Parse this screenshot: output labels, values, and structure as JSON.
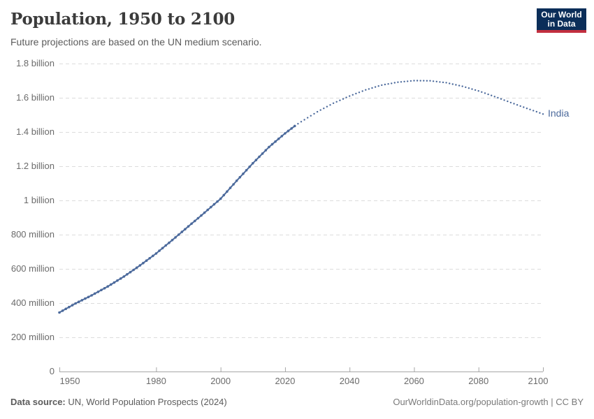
{
  "header": {
    "title": "Population, 1950 to 2100",
    "subtitle": "Future projections are based on the UN medium scenario.",
    "logo": {
      "line1": "Our World",
      "line2": "in Data",
      "bg": "#0b2e59",
      "accent": "#c22f3f"
    }
  },
  "footer": {
    "source_label": "Data source:",
    "source_text": " UN, World Population Prospects (2024)",
    "right_text": "OurWorldinData.org/population-growth | CC BY"
  },
  "chart_data": {
    "type": "line",
    "title": "Population, 1950 to 2100",
    "subtitle": "Future projections are based on the UN medium scenario.",
    "entity": "India",
    "color": "#4C6A9C",
    "grid": "dashed-horizontal",
    "legend": "label-at-line-end",
    "x_range": [
      1950,
      2100
    ],
    "y_range_millions": [
      0,
      1800
    ],
    "x_ticks": [
      {
        "year": 1950,
        "label": "1950"
      },
      {
        "year": 1980,
        "label": "1980"
      },
      {
        "year": 2000,
        "label": "2000"
      },
      {
        "year": 2020,
        "label": "2020"
      },
      {
        "year": 2040,
        "label": "2040"
      },
      {
        "year": 2060,
        "label": "2060"
      },
      {
        "year": 2080,
        "label": "2080"
      },
      {
        "year": 2100,
        "label": "2100"
      }
    ],
    "y_ticks": [
      {
        "millions": 0,
        "label": "0"
      },
      {
        "millions": 200,
        "label": "200 million"
      },
      {
        "millions": 400,
        "label": "400 million"
      },
      {
        "millions": 600,
        "label": "600 million"
      },
      {
        "millions": 800,
        "label": "800 million"
      },
      {
        "millions": 1000,
        "label": "1 billion"
      },
      {
        "millions": 1200,
        "label": "1.2 billion"
      },
      {
        "millions": 1400,
        "label": "1.4 billion"
      },
      {
        "millions": 1600,
        "label": "1.6 billion"
      },
      {
        "millions": 1800,
        "label": "1.8 billion"
      }
    ],
    "series": [
      {
        "name": "India",
        "historical": {
          "style": "dense-dots",
          "years": [
            1950,
            1955,
            1960,
            1965,
            1970,
            1975,
            1980,
            1985,
            1990,
            1995,
            2000,
            2005,
            2010,
            2015,
            2020,
            2023
          ],
          "millions": [
            345,
            398,
            445,
            497,
            555,
            620,
            690,
            768,
            848,
            928,
            1010,
            1115,
            1217,
            1312,
            1392,
            1435
          ]
        },
        "projection": {
          "style": "dotted",
          "years": [
            2024,
            2025,
            2030,
            2035,
            2040,
            2045,
            2050,
            2055,
            2060,
            2065,
            2070,
            2075,
            2080,
            2085,
            2090,
            2095,
            2100
          ],
          "millions": [
            1448,
            1460,
            1518,
            1568,
            1610,
            1646,
            1674,
            1691,
            1700,
            1699,
            1688,
            1667,
            1640,
            1607,
            1572,
            1538,
            1505
          ]
        }
      }
    ]
  }
}
